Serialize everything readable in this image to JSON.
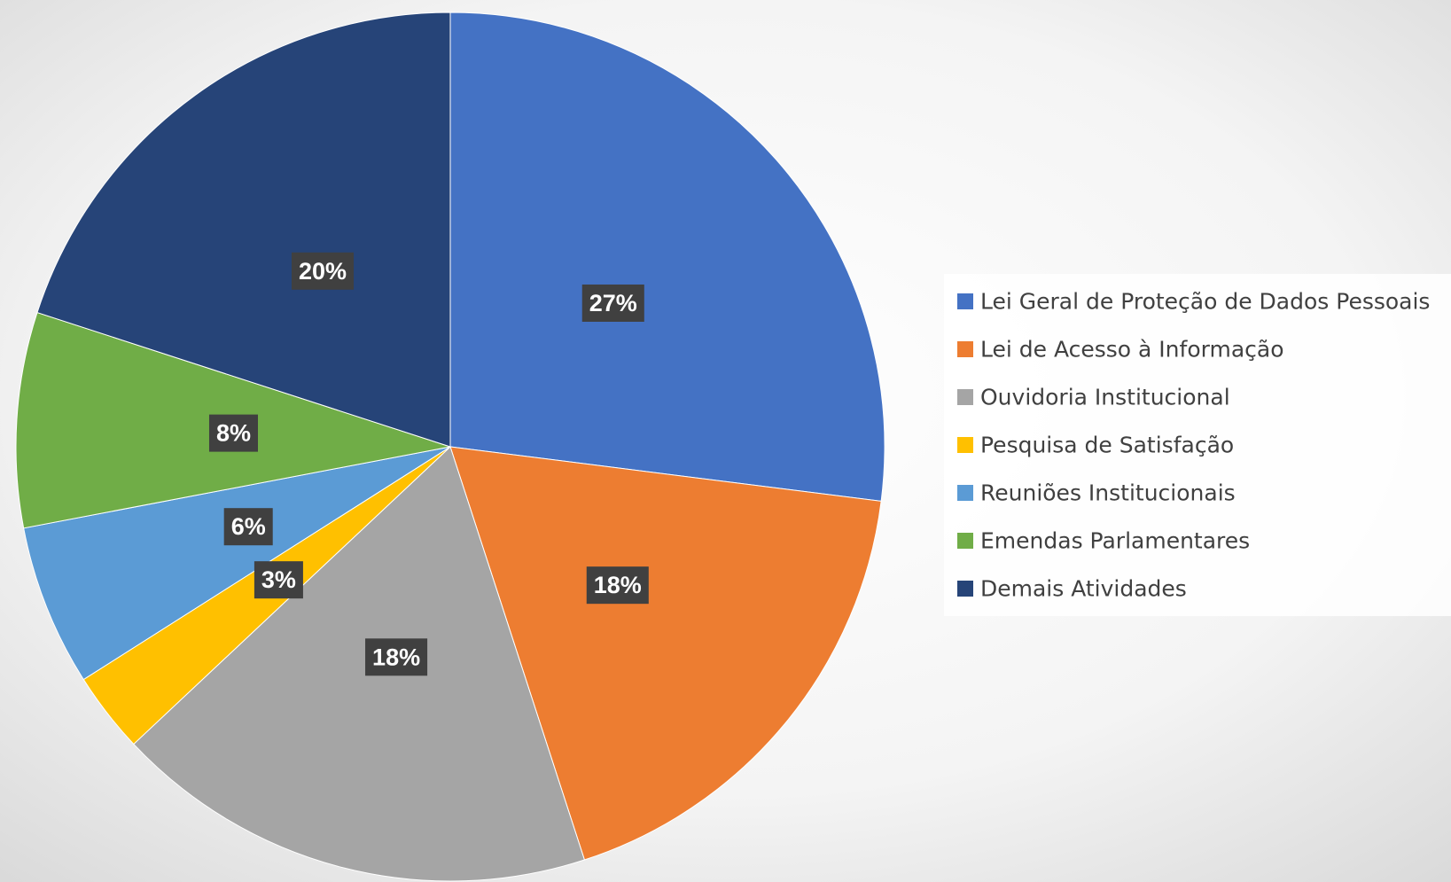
{
  "chart_data": {
    "type": "pie",
    "categories": [
      "Lei Geral de Proteção de Dados Pessoais",
      "Lei de Acesso à Informação",
      "Ouvidoria Institucional",
      "Pesquisa de Satisfação",
      "Reuniões Institucionais",
      "Emendas Parlamentares",
      "Demais Atividades"
    ],
    "values": [
      27,
      18,
      18,
      3,
      6,
      8,
      20
    ],
    "value_labels": [
      "27%",
      "18%",
      "18%",
      "3%",
      "6%",
      "8%",
      "20%"
    ],
    "colors": [
      "#4472c4",
      "#ed7d31",
      "#a5a5a5",
      "#ffc000",
      "#5b9bd5",
      "#70ad47",
      "#264478"
    ],
    "legend": "right"
  }
}
